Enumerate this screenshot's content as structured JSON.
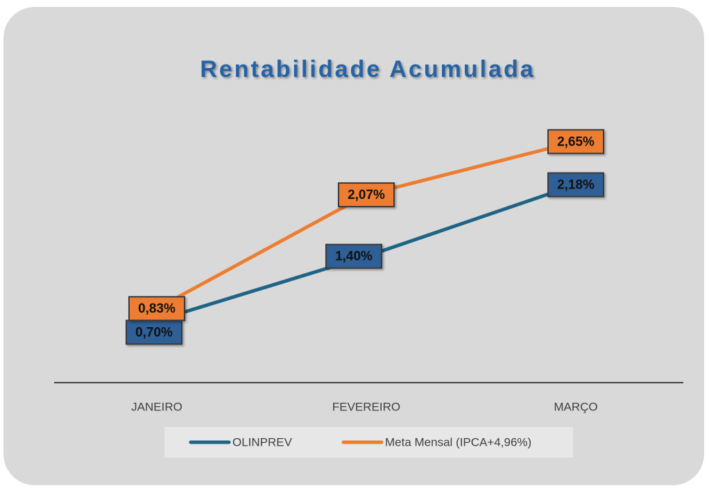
{
  "chart_data": {
    "type": "line",
    "title": "Rentabilidade Acumulada",
    "categories": [
      "JANEIRO",
      "FEVEREIRO",
      "MARÇO"
    ],
    "series": [
      {
        "name": "OLINPREV",
        "color": "#1f6385",
        "label_color": "#2d5f96",
        "values": [
          0.7,
          1.4,
          2.18
        ],
        "value_labels": [
          "0,70%",
          "1,40%",
          "2,18%"
        ]
      },
      {
        "name": "Meta Mensal (IPCA+4,96%)",
        "color": "#ed7d31",
        "label_color": "#ed7d31",
        "values": [
          0.83,
          2.07,
          2.65
        ],
        "value_labels": [
          "0,83%",
          "2,07%",
          "2,65%"
        ]
      }
    ],
    "ylim": [
      0,
      3
    ],
    "legend": "bottom"
  }
}
